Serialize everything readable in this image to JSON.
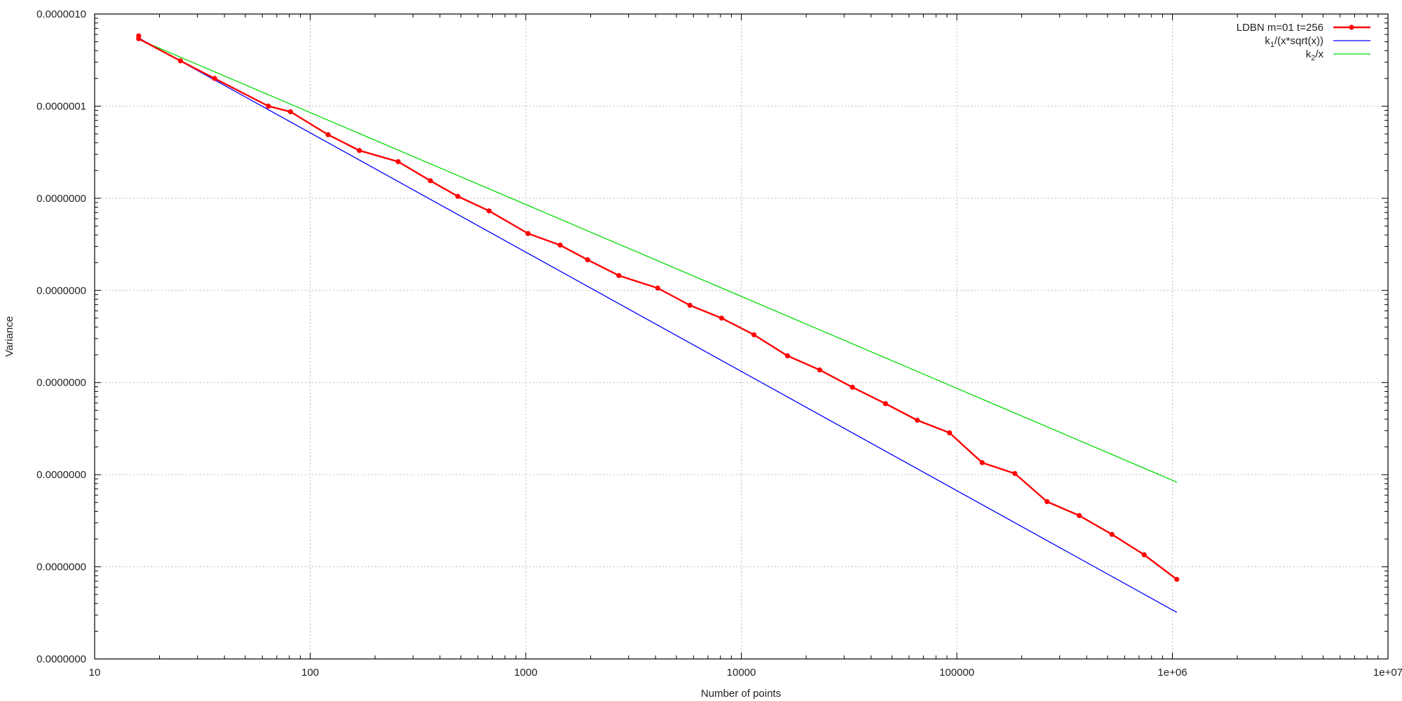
{
  "chart_data": {
    "type": "line",
    "title": "",
    "xlabel": "Number of points",
    "ylabel": "Variance",
    "x_scale": "log",
    "y_scale": "log",
    "xlim": [
      10,
      10000000
    ],
    "ylim": [
      1e-13,
      1e-06
    ],
    "grid": true,
    "legend_position": "top-right",
    "x_ticks": [
      {
        "value": 10,
        "label": "10"
      },
      {
        "value": 100,
        "label": "100"
      },
      {
        "value": 1000,
        "label": "1000"
      },
      {
        "value": 10000,
        "label": "10000"
      },
      {
        "value": 100000,
        "label": "100000"
      },
      {
        "value": 1000000,
        "label": "1e+06"
      },
      {
        "value": 10000000,
        "label": "1e+07"
      }
    ],
    "y_ticks": [
      {
        "value": 1e-13,
        "label": "0.0000000"
      },
      {
        "value": 1e-12,
        "label": "0.0000000"
      },
      {
        "value": 1e-11,
        "label": "0.0000000"
      },
      {
        "value": 1e-10,
        "label": "0.0000000"
      },
      {
        "value": 1e-09,
        "label": "0.0000000"
      },
      {
        "value": 1e-08,
        "label": "0.0000000"
      },
      {
        "value": 1e-07,
        "label": "0.0000001"
      },
      {
        "value": 1e-06,
        "label": "0.0000010"
      }
    ],
    "series": [
      {
        "name": "LDBN m=01 t=256",
        "legend_main": "LDBN m=01 t=256",
        "legend_sub": "",
        "legend_tail": "",
        "color": "#ff0000",
        "markers": true,
        "x": [
          16,
          16,
          25,
          36,
          64,
          81,
          121,
          169,
          256,
          361,
          484,
          676,
          1024,
          1444,
          1936,
          2704,
          4096,
          5776,
          8100,
          11449,
          16384,
          23104,
          32761,
          46656,
          65536,
          92416,
          131044,
          185761,
          262144,
          369664,
          524176,
          739600,
          1048576
        ],
        "y": [
          5.8e-07,
          5.4e-07,
          3.1e-07,
          2e-07,
          1e-07,
          8.7e-08,
          4.9e-08,
          3.3e-08,
          2.5e-08,
          1.55e-08,
          1.05e-08,
          7.3e-09,
          4.15e-09,
          3.1e-09,
          2.15e-09,
          1.45e-09,
          1.06e-09,
          6.9e-10,
          5e-10,
          3.3e-10,
          1.95e-10,
          1.37e-10,
          8.9e-11,
          5.9e-11,
          3.9e-11,
          2.85e-11,
          1.35e-11,
          1.03e-11,
          5.1e-12,
          3.6e-12,
          2.25e-12,
          1.35e-12,
          7.3e-13
        ]
      },
      {
        "name": "k1/(x*sqrt(x))",
        "legend_main": "k",
        "legend_sub": "1",
        "legend_tail": "/(x*sqrt(x))",
        "color": "#0000ff",
        "markers": false,
        "x": [
          16,
          1048576
        ],
        "y": [
          5.5e-07,
          3.2e-13
        ]
      },
      {
        "name": "k2/x",
        "legend_main": "k",
        "legend_sub": "2",
        "legend_tail": "/x",
        "color": "#00dd00",
        "markers": false,
        "x": [
          16,
          1048576
        ],
        "y": [
          5.3e-07,
          8.3e-12
        ]
      }
    ]
  }
}
